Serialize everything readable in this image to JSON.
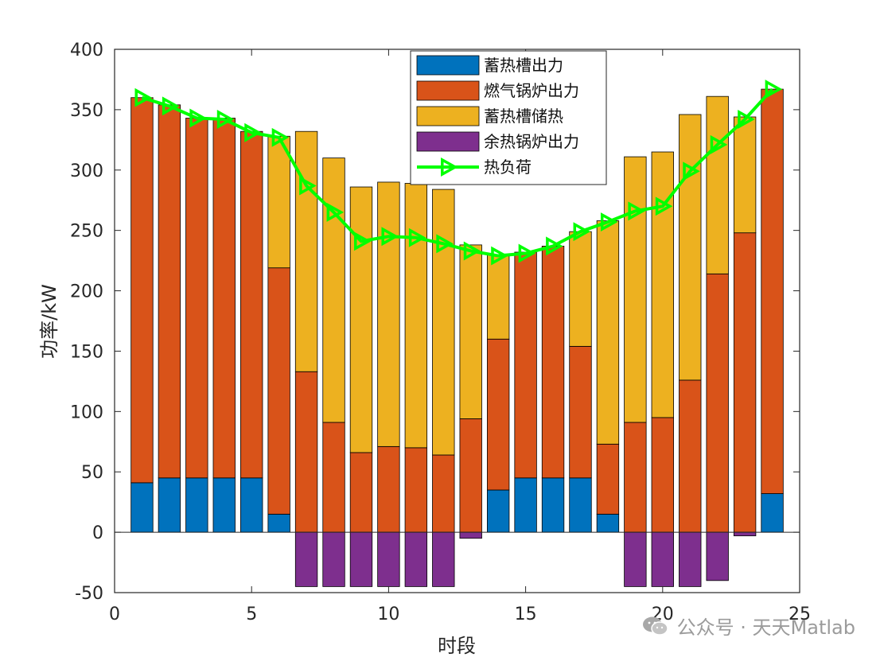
{
  "chart_data": {
    "type": "bar",
    "stacked": true,
    "xlabel": "时段",
    "ylabel": "功率/kW",
    "xlim": [
      0,
      25
    ],
    "ylim": [
      -50,
      400
    ],
    "xticks": [
      0,
      5,
      10,
      15,
      20,
      25
    ],
    "yticks": [
      -50,
      0,
      50,
      100,
      150,
      200,
      250,
      300,
      350,
      400
    ],
    "grid": false,
    "legend_position": "top-right",
    "x": [
      1,
      2,
      3,
      4,
      5,
      6,
      7,
      8,
      9,
      10,
      11,
      12,
      13,
      14,
      15,
      16,
      17,
      18,
      19,
      20,
      21,
      22,
      23,
      24
    ],
    "series": [
      {
        "name": "蓄热槽出力",
        "kind": "bar",
        "color": "#0072BD",
        "values": [
          41,
          45,
          45,
          45,
          45,
          15,
          0,
          0,
          0,
          0,
          0,
          0,
          0,
          35,
          45,
          45,
          45,
          15,
          0,
          0,
          0,
          0,
          0,
          32
        ]
      },
      {
        "name": "燃气锅炉出力",
        "kind": "bar",
        "color": "#D95319",
        "values": [
          319,
          309,
          298,
          298,
          287,
          204,
          133,
          91,
          66,
          71,
          70,
          64,
          94,
          125,
          187,
          192,
          109,
          58,
          91,
          95,
          126,
          214,
          248,
          335
        ]
      },
      {
        "name": "蓄热槽储热",
        "kind": "bar",
        "color": "#EDB120",
        "values": [
          0,
          0,
          0,
          0,
          0,
          109,
          199,
          219,
          220,
          219,
          219,
          220,
          144,
          70,
          0,
          0,
          95,
          185,
          220,
          220,
          220,
          147,
          96,
          0
        ]
      },
      {
        "name": "余热锅炉出力",
        "kind": "bar",
        "color": "#7E2F8E",
        "values": [
          0,
          0,
          0,
          0,
          0,
          0,
          -45,
          -45,
          -45,
          -45,
          -45,
          -45,
          -5,
          0,
          0,
          0,
          0,
          0,
          -45,
          -45,
          -45,
          -40,
          -3,
          0
        ]
      },
      {
        "name": "热负荷",
        "kind": "line",
        "color": "#00FF00",
        "marker": "triangle-right",
        "values": [
          360,
          353,
          343,
          342,
          331,
          327,
          287,
          265,
          241,
          245,
          244,
          239,
          233,
          229,
          231,
          237,
          249,
          257,
          266,
          270,
          299,
          321,
          342,
          367
        ]
      }
    ]
  },
  "watermark": {
    "icon": "wechat-icon",
    "text": "公众号 · 天天Matlab"
  }
}
